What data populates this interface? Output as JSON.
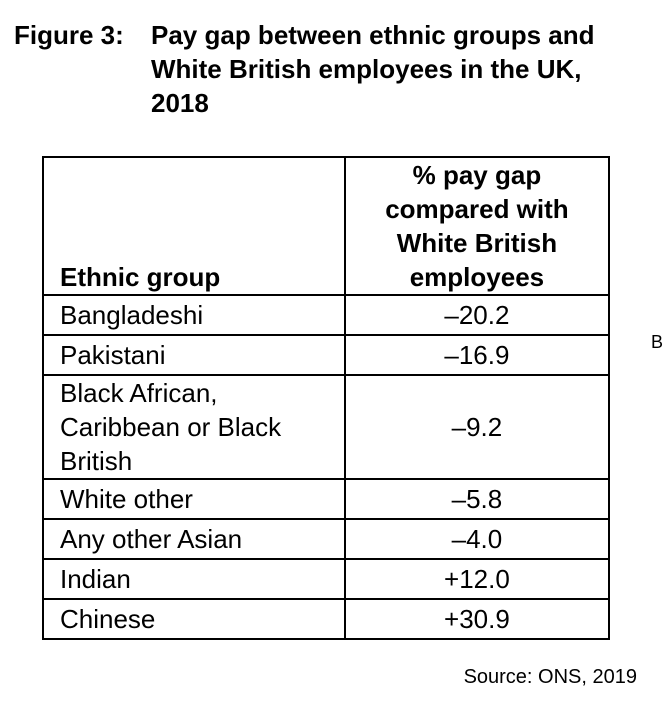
{
  "figure": {
    "label": "Figure 3:",
    "title": "Pay gap between ethnic groups and White British employees in the UK, 2018"
  },
  "table": {
    "headers": {
      "group": "Ethnic group",
      "gap": "% pay gap compared with White British employees"
    },
    "rows": [
      {
        "group": "Bangladeshi",
        "gap": "–20.2"
      },
      {
        "group": "Pakistani",
        "gap": "–16.9"
      },
      {
        "group": "Black African, Caribbean or Black British",
        "gap": "–9.2"
      },
      {
        "group": "White other",
        "gap": "–5.8"
      },
      {
        "group": "Any other Asian",
        "gap": "–4.0"
      },
      {
        "group": "Indian",
        "gap": "+12.0"
      },
      {
        "group": "Chinese",
        "gap": "+30.9"
      }
    ]
  },
  "edge_fragment": "B",
  "source": "Source: ONS, 2019"
}
